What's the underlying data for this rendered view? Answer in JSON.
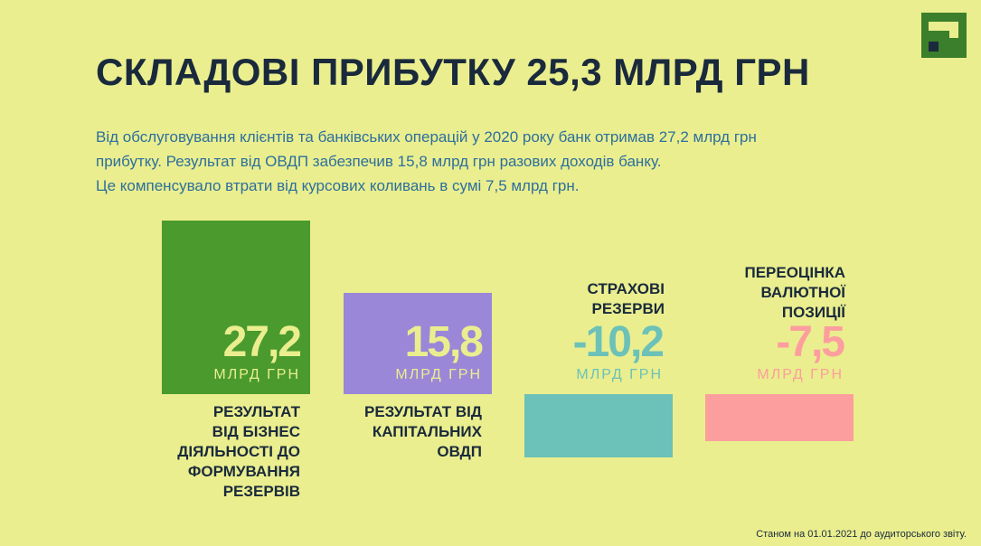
{
  "header": {
    "title": "СКЛАДОВІ ПРИБУТКУ 25,3 МЛРД ГРН",
    "logo_icon": "privatbank-logo"
  },
  "intro": {
    "line1": "Від обслуговування клієнтів та банківських операцій у 2020 року банк отримав 27,2 млрд грн",
    "line2": "прибутку. Результат від ОВДП забезпечив 15,8 млрд грн разових доходів банку.",
    "line3": "Це компенсувало втрати від курсових коливань в сумі 7,5 млрд грн."
  },
  "colors": {
    "background": "#eaee8e",
    "green": "#4a9a2e",
    "purple": "#9a87d8",
    "teal": "#6cc1b8",
    "pink": "#fd9e9e"
  },
  "chart_data": {
    "type": "bar",
    "unit": "МЛРД ГРН",
    "categories": [
      "РЕЗУЛЬТАТ ВІД БІЗНЕС ДІЯЛЬНОСТІ ДО ФОРМУВАННЯ РЕЗЕРВІВ",
      "РЕЗУЛЬТАТ ВІД КАПІТАЛЬНИХ ОВДП",
      "СТРАХОВІ РЕЗЕРВИ",
      "ПЕРЕОЦІНКА ВАЛЮТНОЇ ПОЗИЦІЇ"
    ],
    "values": [
      27.2,
      15.8,
      -10.2,
      -7.5
    ],
    "value_labels": [
      "27,2",
      "15,8",
      "-10,2",
      "-7,5"
    ],
    "captions": {
      "business": [
        "РЕЗУЛЬТАТ",
        "ВІД БІЗНЕС",
        "ДІЯЛЬНОСТІ ДО",
        "ФОРМУВАННЯ",
        "РЕЗЕРВІВ"
      ],
      "ovdp": [
        "РЕЗУЛЬТАТ ВІД",
        "КАПІТАЛЬНИХ",
        "ОВДП"
      ],
      "reserves": [
        "СТРАХОВІ",
        "РЕЗЕРВИ"
      ],
      "revaluation": [
        "ПЕРЕОЦІНКА",
        "ВАЛЮТНОЇ",
        "ПОЗИЦІЇ"
      ]
    }
  },
  "footnote": "Станом на 01.01.2021 до аудиторського звіту."
}
